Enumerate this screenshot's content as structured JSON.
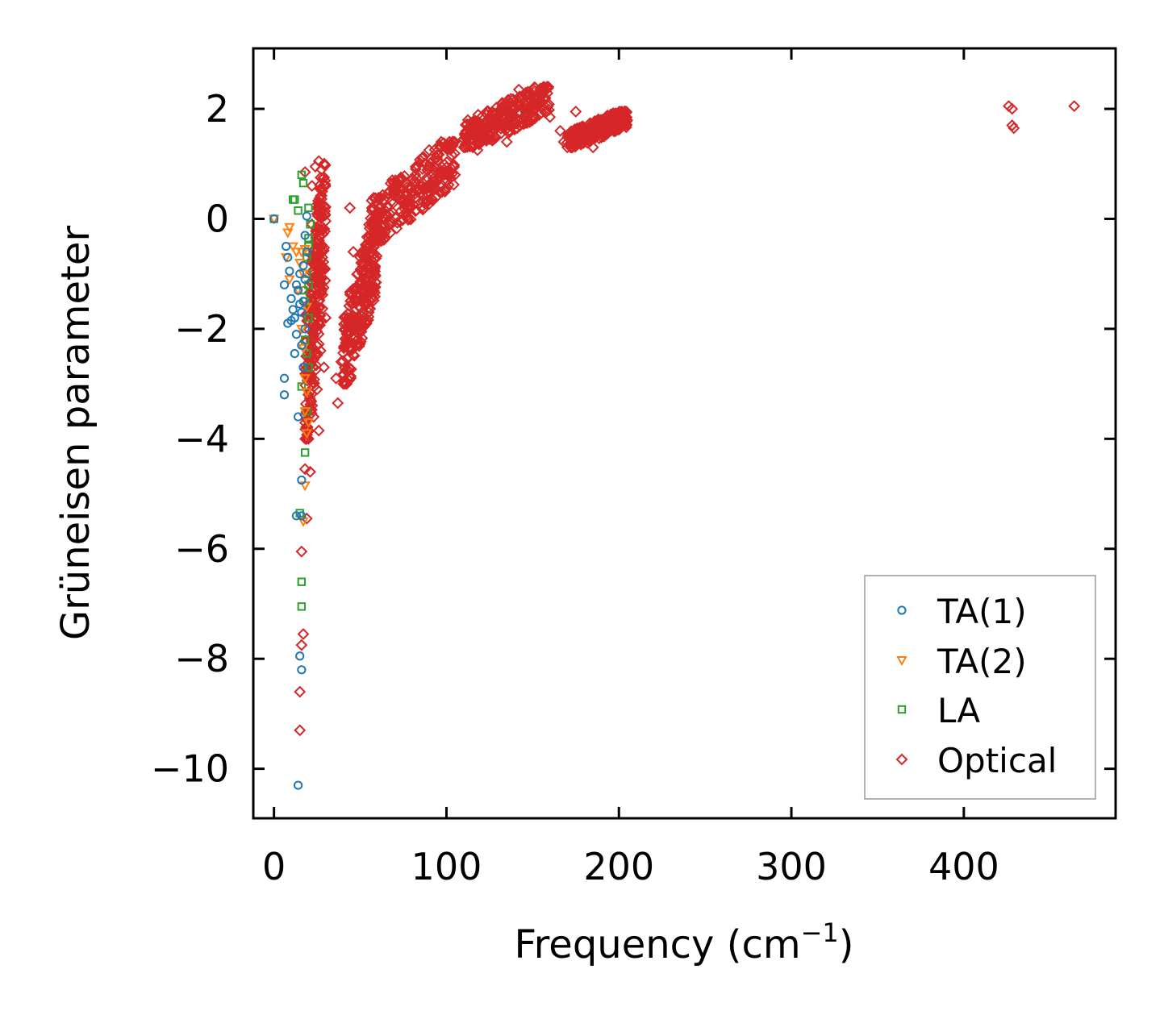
{
  "chart_data": {
    "type": "scatter",
    "title": "",
    "xlabel": "Frequency (cm",
    "xlabel_sup": "−1",
    "xlabel_close": ")",
    "ylabel": "Grüneisen parameter",
    "xlim": [
      -12,
      488
    ],
    "ylim": [
      -10.9,
      3.1
    ],
    "x_ticks": [
      0,
      100,
      200,
      300,
      400
    ],
    "x_tick_labels": [
      "0",
      "100",
      "200",
      "300",
      "400"
    ],
    "y_ticks": [
      2,
      0,
      -2,
      -4,
      -6,
      -8,
      -10
    ],
    "y_tick_labels": [
      "2",
      "0",
      "−2",
      "−4",
      "−6",
      "−8",
      "−10"
    ],
    "grid": false,
    "legend_position": "bottom-right",
    "colors": {
      "TA(1)": "#1f77b4",
      "TA(2)": "#ff7f0e",
      "LA": "#2ca02c",
      "Optical": "#d62728"
    },
    "series": [
      {
        "name": "TA(1)",
        "marker": "circle",
        "points": [
          [
            0,
            0
          ],
          [
            7,
            -0.5
          ],
          [
            8,
            -0.7
          ],
          [
            6,
            -1.2
          ],
          [
            9,
            -0.95
          ],
          [
            10,
            -1.45
          ],
          [
            11,
            -1.65
          ],
          [
            12,
            -1.8
          ],
          [
            13,
            -2.1
          ],
          [
            12,
            -2.45
          ],
          [
            8,
            -1.9
          ],
          [
            10,
            -1.85
          ],
          [
            13,
            -1.2
          ],
          [
            14,
            -1.3
          ],
          [
            15,
            -1.55
          ],
          [
            16,
            -1.7
          ],
          [
            15,
            -1.0
          ],
          [
            17,
            -0.85
          ],
          [
            18,
            -1.1
          ],
          [
            17,
            -1.5
          ],
          [
            18,
            -2.0
          ],
          [
            16,
            -2.3
          ],
          [
            17,
            -2.7
          ],
          [
            6,
            -2.9
          ],
          [
            6,
            -3.2
          ],
          [
            14,
            -3.6
          ],
          [
            16,
            -4.75
          ],
          [
            13,
            -5.4
          ],
          [
            16,
            -5.4
          ],
          [
            15,
            -7.95
          ],
          [
            16,
            -8.2
          ],
          [
            14,
            -10.3
          ],
          [
            19,
            0.05
          ],
          [
            18,
            -0.3
          ],
          [
            19,
            -0.6
          ]
        ]
      },
      {
        "name": "TA(2)",
        "marker": "triangle-down",
        "points": [
          [
            0,
            0
          ],
          [
            8,
            -0.25
          ],
          [
            9,
            -0.15
          ],
          [
            7,
            -0.7
          ],
          [
            11,
            -0.5
          ],
          [
            13,
            -0.6
          ],
          [
            15,
            -0.8
          ],
          [
            16,
            -0.6
          ],
          [
            17,
            -1.0
          ],
          [
            18,
            -0.55
          ],
          [
            9,
            -1.1
          ],
          [
            14,
            -1.3
          ],
          [
            17,
            -2.35
          ],
          [
            18,
            -2.9
          ],
          [
            19,
            -3.15
          ],
          [
            18,
            -3.5
          ],
          [
            19,
            -3.9
          ],
          [
            18,
            -4.85
          ],
          [
            17,
            -5.5
          ],
          [
            19,
            -1.6
          ],
          [
            16,
            -2.0
          ],
          [
            20,
            -3.7
          ]
        ]
      },
      {
        "name": "LA",
        "marker": "square",
        "points": [
          [
            0,
            0
          ],
          [
            11,
            0.35
          ],
          [
            12,
            0.35
          ],
          [
            14,
            0.15
          ],
          [
            16,
            0.8
          ],
          [
            17,
            0.65
          ],
          [
            20,
            0.2
          ],
          [
            21,
            -0.1
          ],
          [
            20,
            -0.35
          ],
          [
            19,
            -0.7
          ],
          [
            19,
            -1.0
          ],
          [
            20,
            -1.2
          ],
          [
            18,
            -1.5
          ],
          [
            20,
            -1.8
          ],
          [
            18,
            -2.2
          ],
          [
            20,
            -2.7
          ],
          [
            16,
            -3.05
          ],
          [
            19,
            -3.5
          ],
          [
            18,
            -4.25
          ],
          [
            15,
            -5.35
          ],
          [
            16,
            -6.6
          ],
          [
            16,
            -7.05
          ],
          [
            17,
            -1.3
          ],
          [
            19,
            -2.45
          ],
          [
            20,
            -0.5
          ]
        ]
      },
      {
        "name": "Optical",
        "marker": "diamond",
        "points": [
          [
            16,
            -6.05
          ],
          [
            17,
            -7.55
          ],
          [
            16,
            -7.75
          ],
          [
            15,
            -8.6
          ],
          [
            15,
            -9.3
          ],
          [
            18,
            -4.55
          ],
          [
            21,
            -4.6
          ],
          [
            19,
            -5.45
          ],
          [
            18,
            0.85
          ],
          [
            22,
            0.6
          ],
          [
            24,
            0.95
          ],
          [
            26,
            1.05
          ],
          [
            27,
            0.75
          ],
          [
            28,
            0.5
          ],
          [
            25,
            0.2
          ],
          [
            22,
            -0.1
          ],
          [
            23,
            -0.6
          ],
          [
            26,
            -1.1
          ],
          [
            24,
            -1.7
          ],
          [
            27,
            -2.4
          ],
          [
            25,
            -3.1
          ],
          [
            23,
            -3.6
          ],
          [
            26,
            -3.85
          ],
          [
            29,
            -2.7
          ],
          [
            30,
            -1.8
          ],
          [
            28,
            -0.7
          ],
          [
            36,
            -2.9
          ],
          [
            37,
            -3.35
          ],
          [
            39,
            -2.6
          ],
          [
            42,
            -2.2
          ],
          [
            44,
            0.2
          ],
          [
            46,
            -0.6
          ],
          [
            47,
            -1.3
          ],
          [
            48,
            -1.9
          ],
          [
            52,
            -1.0
          ],
          [
            55,
            -0.5
          ],
          [
            58,
            -0.25
          ],
          [
            60,
            0.0
          ],
          [
            62,
            -0.2
          ],
          [
            66,
            0.2
          ],
          [
            70,
            0.6
          ],
          [
            74,
            0.35
          ],
          [
            78,
            0.55
          ],
          [
            82,
            0.8
          ],
          [
            86,
            1.1
          ],
          [
            90,
            1.25
          ],
          [
            95,
            1.05
          ],
          [
            100,
            1.35
          ],
          [
            110,
            1.45
          ],
          [
            118,
            1.25
          ],
          [
            125,
            1.65
          ],
          [
            130,
            1.85
          ],
          [
            135,
            1.4
          ],
          [
            138,
            2.05
          ],
          [
            142,
            2.35
          ],
          [
            146,
            2.25
          ],
          [
            150,
            2.1
          ],
          [
            155,
            2.05
          ],
          [
            160,
            1.85
          ],
          [
            166,
            1.6
          ],
          [
            168,
            1.4
          ],
          [
            175,
            1.95
          ],
          [
            180,
            1.5
          ],
          [
            185,
            1.3
          ],
          [
            190,
            1.8
          ],
          [
            196,
            1.85
          ],
          [
            200,
            1.7
          ],
          [
            426,
            2.05
          ],
          [
            428,
            2.0
          ],
          [
            428,
            1.7
          ],
          [
            429,
            1.65
          ],
          [
            464,
            2.05
          ]
        ]
      }
    ],
    "optical_dense_regions": [
      {
        "x": [
          18,
          30
        ],
        "y": [
          -4.0,
          1.0
        ]
      },
      {
        "x": [
          40,
          60
        ],
        "y": [
          -3.0,
          0.0
        ]
      },
      {
        "x": [
          55,
          105
        ],
        "y": [
          -0.4,
          1.4
        ]
      },
      {
        "x": [
          110,
          160
        ],
        "y": [
          1.3,
          2.4
        ]
      },
      {
        "x": [
          170,
          205
        ],
        "y": [
          1.3,
          1.95
        ]
      }
    ]
  }
}
